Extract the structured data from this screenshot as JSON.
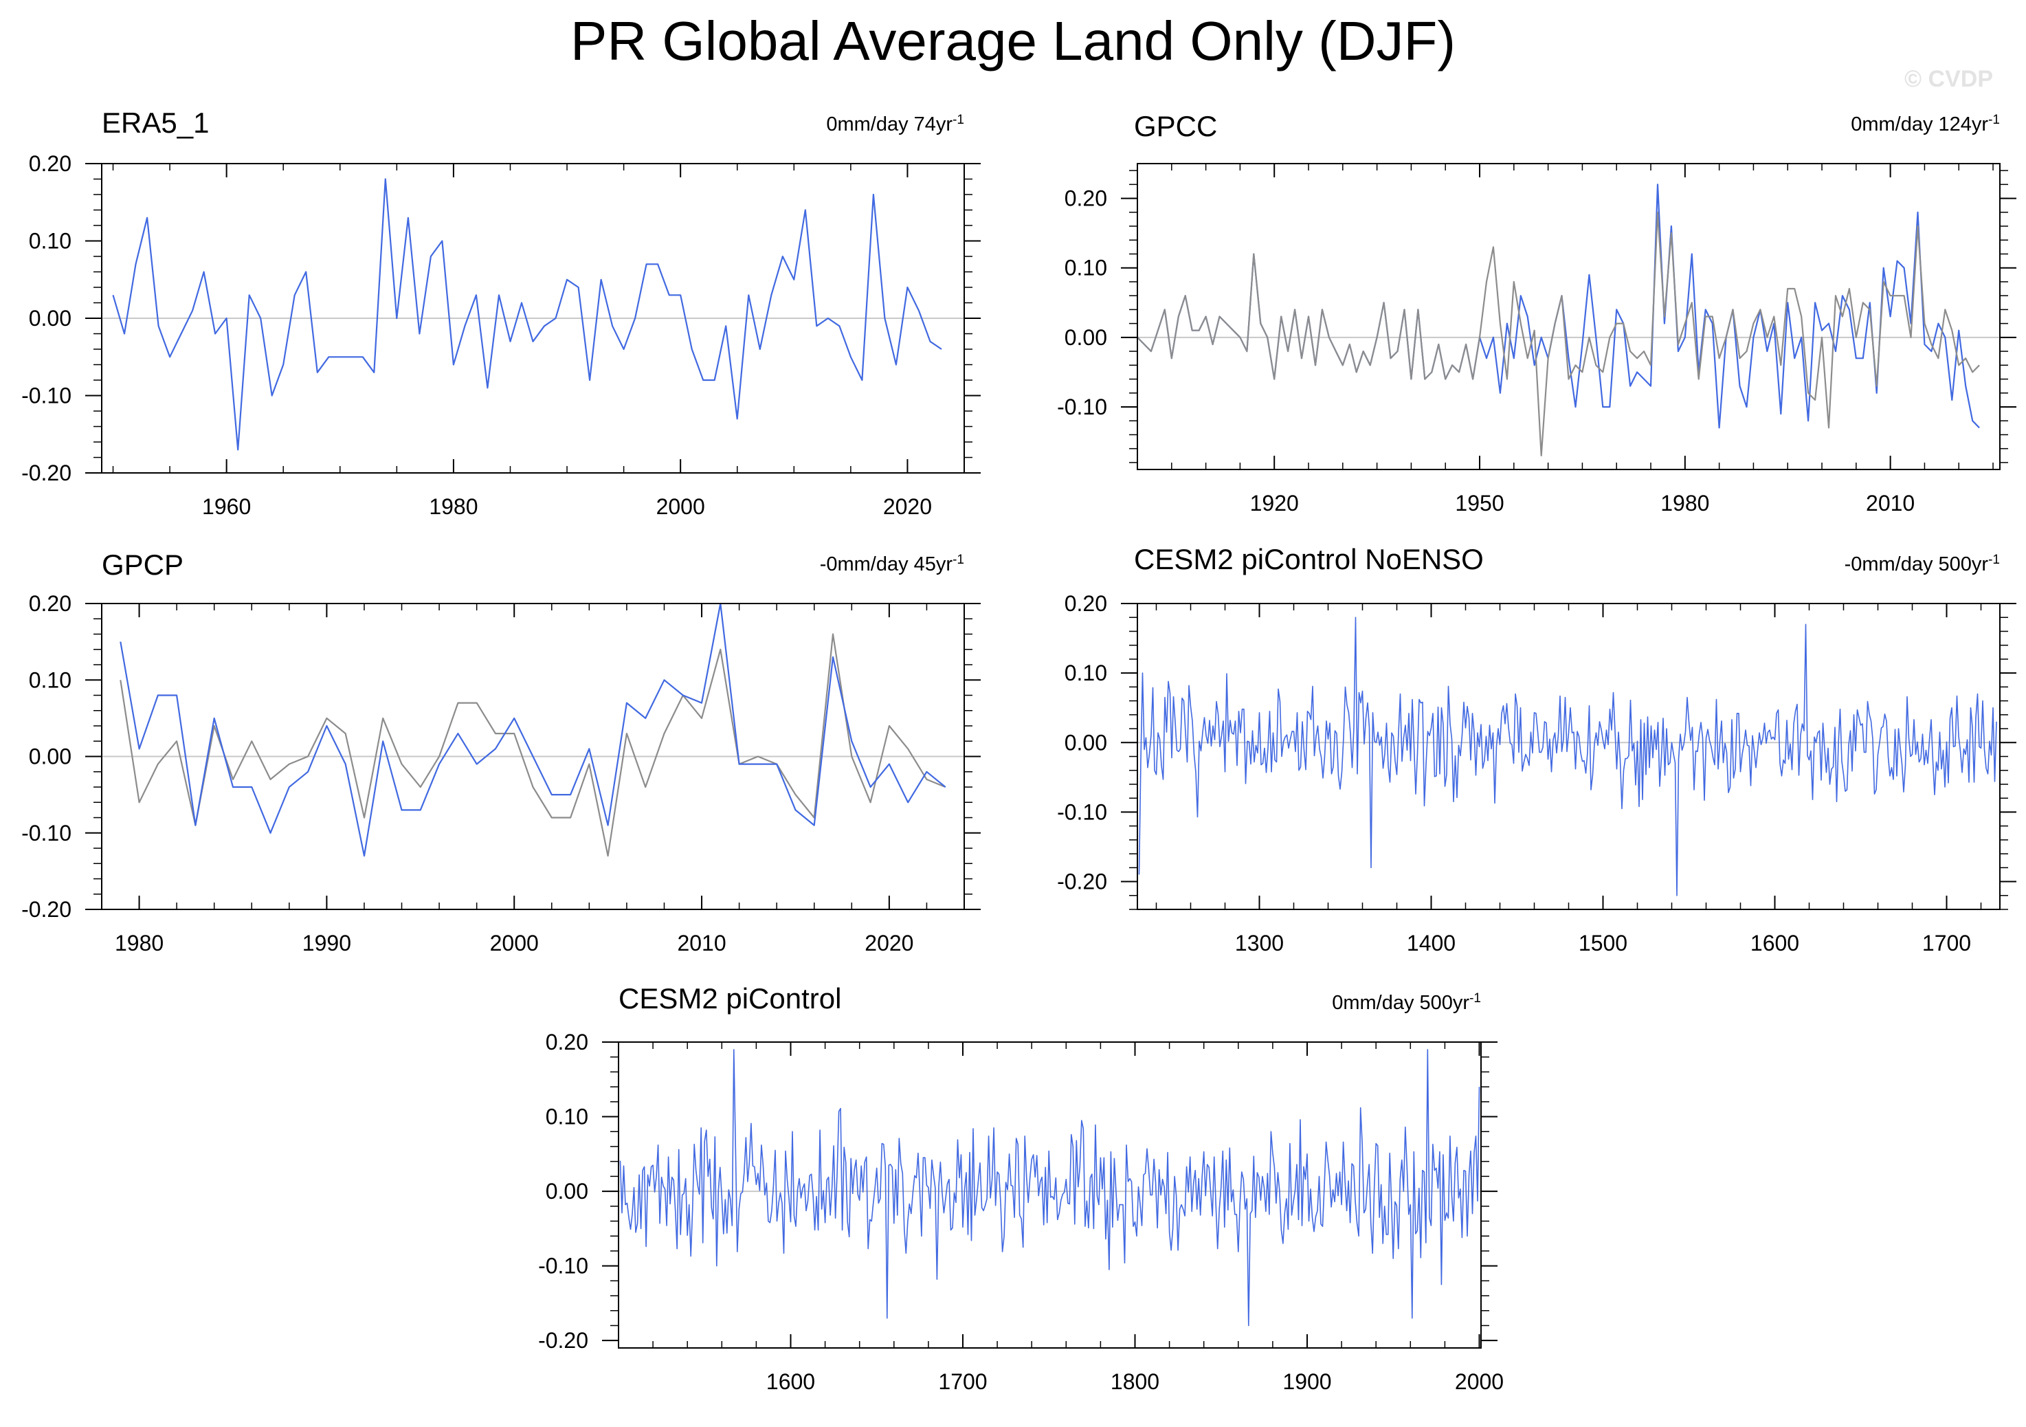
{
  "figure": {
    "title": "PR Global Average Land Only (DJF)",
    "copyright": "© CVDP"
  },
  "colors": {
    "primary": "#4169e1",
    "secondary": "#8c8c8c",
    "zero_line": "#c8c8c8",
    "frame": "#000000"
  },
  "chart_data": [
    {
      "type": "line",
      "title": "ERA5_1",
      "info_prefix": "0mm/day 74yr",
      "info_sup": "-1",
      "xlim": [
        1949,
        2025
      ],
      "ylim": [
        -0.2,
        0.2
      ],
      "xticks": [
        1960,
        1980,
        2000,
        2020
      ],
      "xtick_labels": [
        "1960",
        "1980",
        "2000",
        "2020"
      ],
      "yticks": [
        -0.2,
        -0.1,
        0.0,
        0.1,
        0.2
      ],
      "ytick_labels": [
        "-0.20",
        "-0.10",
        "0.00",
        "0.10",
        "0.20"
      ],
      "minor_dx": 5,
      "minor_dy": 0.02,
      "start_year": 1950,
      "series": [
        {
          "name": "ERA5_1",
          "color": "#4169e1",
          "values": [
            0.03,
            -0.02,
            0.07,
            0.13,
            -0.01,
            -0.05,
            -0.02,
            0.01,
            0.06,
            -0.02,
            0.0,
            -0.17,
            0.03,
            0.0,
            -0.1,
            -0.06,
            0.03,
            0.06,
            -0.07,
            -0.05,
            -0.05,
            -0.05,
            -0.05,
            -0.07,
            0.18,
            0.0,
            0.13,
            -0.02,
            0.08,
            0.1,
            -0.06,
            -0.01,
            0.03,
            -0.09,
            0.03,
            -0.03,
            0.02,
            -0.03,
            -0.01,
            0.0,
            0.05,
            0.04,
            -0.08,
            0.05,
            -0.01,
            -0.04,
            0.0,
            0.07,
            0.07,
            0.03,
            0.03,
            -0.04,
            -0.08,
            -0.08,
            -0.01,
            -0.13,
            0.03,
            -0.04,
            0.03,
            0.08,
            0.05,
            0.14,
            -0.01,
            0.0,
            -0.01,
            -0.05,
            -0.08,
            0.16,
            0.0,
            -0.06,
            0.04,
            0.01,
            -0.03,
            -0.04
          ]
        }
      ]
    },
    {
      "type": "line",
      "title": "GPCC",
      "info_prefix": "0mm/day 124yr",
      "info_sup": "-1",
      "xlim": [
        1900,
        2026
      ],
      "ylim": [
        -0.19,
        0.25
      ],
      "xticks": [
        1920,
        1950,
        1980,
        2010
      ],
      "xtick_labels": [
        "1920",
        "1950",
        "1980",
        "2010"
      ],
      "yticks": [
        -0.1,
        0.0,
        0.1,
        0.2
      ],
      "ytick_labels": [
        "-0.10",
        "0.00",
        "0.10",
        "0.20"
      ],
      "minor_dx": 5,
      "minor_dy": 0.02,
      "start_year": 1900,
      "series": [
        {
          "name": "GPCC",
          "color": "#4169e1",
          "values": [
            0.0,
            -0.01,
            -0.02,
            0.01,
            0.04,
            -0.03,
            0.03,
            0.06,
            0.01,
            0.01,
            0.03,
            -0.01,
            0.03,
            0.02,
            0.01,
            0.0,
            -0.02,
            0.12,
            0.02,
            0.0,
            -0.06,
            0.03,
            -0.02,
            0.04,
            -0.03,
            0.03,
            -0.04,
            0.04,
            0.0,
            -0.02,
            -0.04,
            -0.01,
            -0.05,
            -0.02,
            -0.04,
            0.0,
            0.05,
            -0.03,
            -0.02,
            0.04,
            -0.06,
            0.04,
            -0.06,
            -0.05,
            -0.01,
            -0.06,
            -0.04,
            -0.05,
            -0.01,
            -0.06,
            0.0,
            -0.03,
            0.0,
            -0.08,
            0.02,
            -0.03,
            0.06,
            0.03,
            -0.04,
            0.0,
            -0.03,
            0.02,
            0.06,
            -0.03,
            -0.1,
            -0.01,
            0.09,
            0.0,
            -0.1,
            -0.1,
            0.04,
            0.02,
            -0.07,
            -0.05,
            -0.06,
            -0.07,
            0.22,
            0.02,
            0.16,
            -0.02,
            0.0,
            0.12,
            -0.05,
            0.04,
            0.02,
            -0.13,
            0.0,
            0.04,
            -0.07,
            -0.1,
            0.0,
            0.04,
            -0.02,
            0.02,
            -0.11,
            0.05,
            -0.03,
            0.0,
            -0.12,
            0.05,
            0.01,
            0.02,
            -0.02,
            0.06,
            0.04,
            -0.03,
            -0.03,
            0.05,
            -0.08,
            0.1,
            0.03,
            0.11,
            0.1,
            0.02,
            0.18,
            -0.01,
            -0.02,
            0.02,
            0.0,
            -0.09,
            0.01,
            -0.07,
            -0.12,
            -0.13
          ]
        },
        {
          "name": "GPCC (gray)",
          "color": "#8c8c8c",
          "values": [
            0.0,
            -0.01,
            -0.02,
            0.01,
            0.04,
            -0.03,
            0.03,
            0.06,
            0.01,
            0.01,
            0.03,
            -0.01,
            0.03,
            0.02,
            0.01,
            0.0,
            -0.02,
            0.12,
            0.02,
            0.0,
            -0.06,
            0.03,
            -0.02,
            0.04,
            -0.03,
            0.03,
            -0.04,
            0.04,
            0.0,
            -0.02,
            -0.04,
            -0.01,
            -0.05,
            -0.02,
            -0.04,
            0.0,
            0.05,
            -0.03,
            -0.02,
            0.04,
            -0.06,
            0.04,
            -0.06,
            -0.05,
            -0.01,
            -0.06,
            -0.04,
            -0.05,
            -0.01,
            -0.06,
            0.0,
            0.08,
            0.13,
            0.02,
            -0.06,
            0.08,
            0.02,
            -0.03,
            0.01,
            -0.17,
            -0.03,
            0.02,
            0.06,
            -0.06,
            -0.04,
            -0.05,
            0.0,
            -0.04,
            -0.05,
            0.0,
            0.02,
            0.02,
            -0.02,
            -0.03,
            -0.02,
            -0.04,
            0.18,
            0.03,
            0.15,
            -0.01,
            0.02,
            0.05,
            -0.06,
            0.03,
            0.03,
            -0.03,
            0.0,
            0.04,
            -0.03,
            -0.02,
            0.02,
            0.04,
            0.0,
            0.03,
            -0.04,
            0.07,
            0.07,
            0.03,
            -0.08,
            -0.09,
            0.0,
            -0.13,
            0.06,
            0.03,
            0.07,
            0.0,
            0.05,
            0.04,
            -0.07,
            0.08,
            0.06,
            0.06,
            0.06,
            0.0,
            0.16,
            0.02,
            -0.01,
            -0.03,
            0.04,
            0.01,
            -0.04,
            -0.03,
            -0.05,
            -0.04
          ]
        }
      ]
    },
    {
      "type": "line",
      "title": "GPCP",
      "info_prefix": "-0mm/day 45yr",
      "info_sup": "-1",
      "xlim": [
        1978,
        2024
      ],
      "ylim": [
        -0.2,
        0.2
      ],
      "xticks": [
        1980,
        1990,
        2000,
        2010,
        2020
      ],
      "xtick_labels": [
        "1980",
        "1990",
        "2000",
        "2010",
        "2020"
      ],
      "yticks": [
        -0.2,
        -0.1,
        0.0,
        0.1,
        0.2
      ],
      "ytick_labels": [
        "-0.20",
        "-0.10",
        "0.00",
        "0.10",
        "0.20"
      ],
      "minor_dx": 2,
      "minor_dy": 0.02,
      "start_year": 1979,
      "series": [
        {
          "name": "GPCP (gray)",
          "color": "#8c8c8c",
          "values": [
            0.1,
            -0.06,
            -0.01,
            0.02,
            -0.09,
            0.04,
            -0.03,
            0.02,
            -0.03,
            -0.01,
            0.0,
            0.05,
            0.03,
            -0.08,
            0.05,
            -0.01,
            -0.04,
            0.0,
            0.07,
            0.07,
            0.03,
            0.03,
            -0.04,
            -0.08,
            -0.08,
            -0.01,
            -0.13,
            0.03,
            -0.04,
            0.03,
            0.08,
            0.05,
            0.14,
            -0.01,
            0.0,
            -0.01,
            -0.05,
            -0.08,
            0.16,
            0.0,
            -0.06,
            0.04,
            0.01,
            -0.03,
            -0.04
          ]
        },
        {
          "name": "GPCP",
          "color": "#4169e1",
          "values": [
            0.15,
            0.01,
            0.08,
            0.08,
            -0.09,
            0.05,
            -0.04,
            -0.04,
            -0.1,
            -0.04,
            -0.02,
            0.04,
            -0.01,
            -0.13,
            0.02,
            -0.07,
            -0.07,
            -0.01,
            0.03,
            -0.01,
            0.01,
            0.05,
            0.0,
            -0.05,
            -0.05,
            0.01,
            -0.09,
            0.07,
            0.05,
            0.1,
            0.08,
            0.07,
            0.2,
            -0.01,
            -0.01,
            -0.01,
            -0.07,
            -0.09,
            0.13,
            0.02,
            -0.04,
            -0.01,
            -0.06,
            -0.02,
            -0.04
          ]
        }
      ]
    },
    {
      "type": "line",
      "title": "CESM2 piControl NoENSO",
      "info_prefix": "-0mm/day 500yr",
      "info_sup": "-1",
      "xlim": [
        1229,
        1731
      ],
      "ylim": [
        -0.24,
        0.2
      ],
      "xticks": [
        1300,
        1400,
        1500,
        1600,
        1700
      ],
      "xtick_labels": [
        "1300",
        "1400",
        "1500",
        "1600",
        "1700"
      ],
      "yticks": [
        -0.2,
        -0.1,
        0.0,
        0.1,
        0.2
      ],
      "ytick_labels": [
        "-0.20",
        "-0.10",
        "0.00",
        "0.10",
        "0.20"
      ],
      "minor_dx": 20,
      "minor_dy": 0.02,
      "start_year": 1230,
      "count": 500,
      "seed": 7,
      "amp": 0.055,
      "clip": 0.2,
      "overrides": [
        [
          1230,
          -0.19
        ],
        [
          1232,
          0.1
        ],
        [
          1356,
          0.18
        ],
        [
          1365,
          -0.18
        ],
        [
          1543,
          -0.22
        ],
        [
          1618,
          0.17
        ]
      ],
      "series": [
        {
          "name": "CESM2 piControl NoENSO",
          "color": "#4169e1"
        }
      ]
    },
    {
      "type": "line",
      "title": "CESM2 piControl",
      "info_prefix": "0mm/day 500yr",
      "info_sup": "-1",
      "xlim": [
        1500,
        2001
      ],
      "ylim": [
        -0.21,
        0.2
      ],
      "xticks": [
        1600,
        1700,
        1800,
        1900,
        2000
      ],
      "xtick_labels": [
        "1600",
        "1700",
        "1800",
        "1900",
        "2000"
      ],
      "yticks": [
        -0.2,
        -0.1,
        0.0,
        0.1,
        0.2
      ],
      "ytick_labels": [
        "-0.20",
        "-0.10",
        "0.00",
        "0.10",
        "0.20"
      ],
      "minor_dx": 20,
      "minor_dy": 0.02,
      "start_year": 1501,
      "count": 500,
      "seed": 42,
      "amp": 0.06,
      "clip": 0.19,
      "overrides": [
        [
          1567,
          0.19
        ],
        [
          1656,
          -0.17
        ],
        [
          1866,
          -0.18
        ],
        [
          1970,
          0.19
        ],
        [
          1961,
          -0.17
        ],
        [
          2000,
          0.14
        ]
      ],
      "series": [
        {
          "name": "CESM2 piControl",
          "color": "#4169e1"
        }
      ]
    }
  ]
}
